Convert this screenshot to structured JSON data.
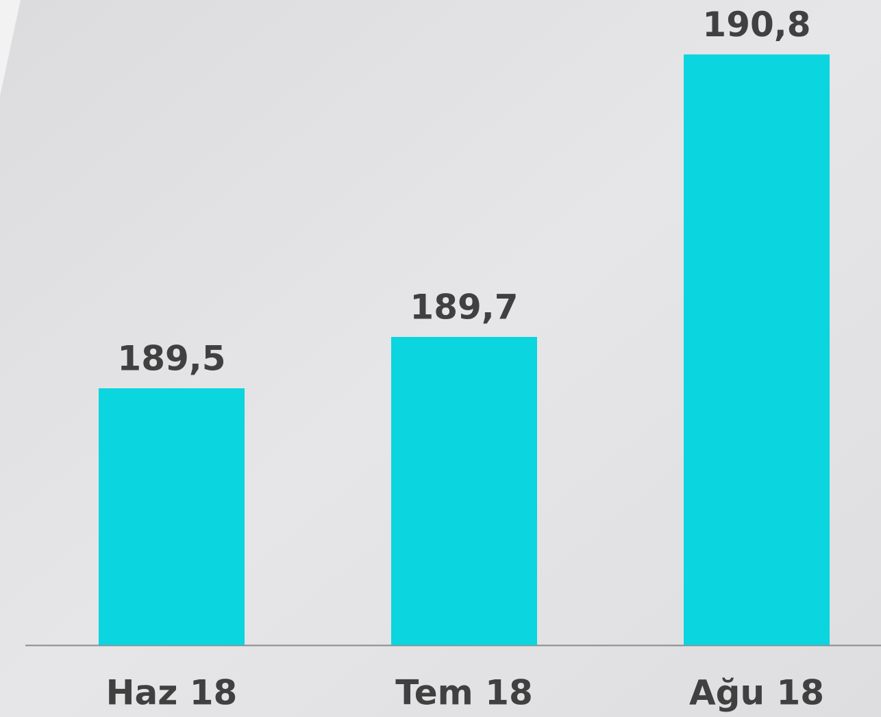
{
  "chart_data": {
    "type": "bar",
    "categories": [
      "Haz 18",
      "Tem 18",
      "Ağu 18"
    ],
    "values": [
      189.5,
      189.7,
      190.8
    ],
    "value_labels": [
      "189,5",
      "189,7",
      "190,8"
    ],
    "color": "#0bd5de",
    "ylim": [
      188.5,
      191.0
    ]
  }
}
